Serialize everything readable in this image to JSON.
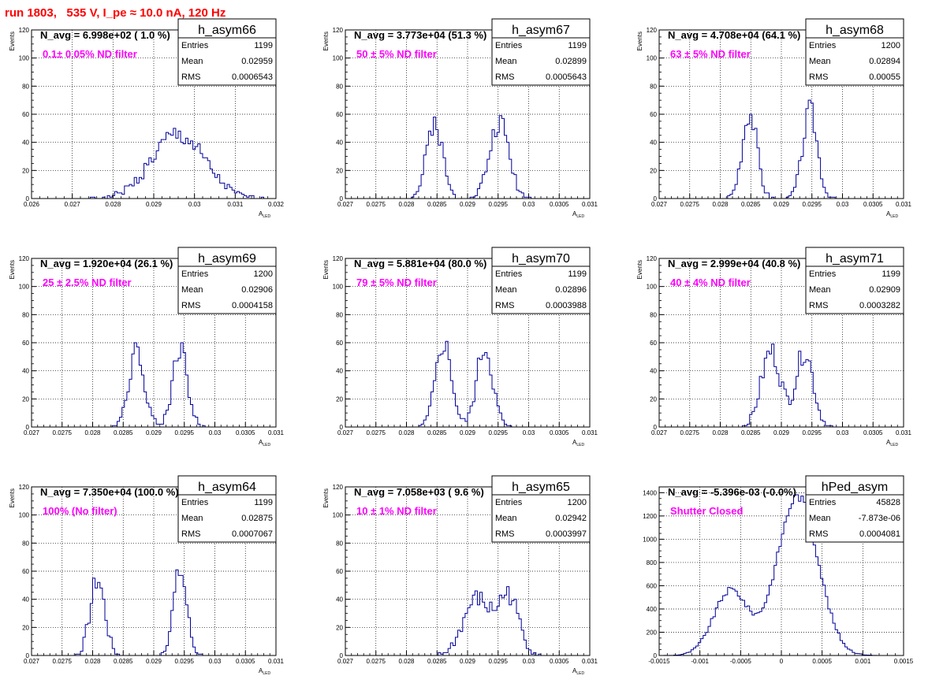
{
  "page": {
    "title": "run 1803,   535 V, I_pe ≈ 10.0 nA, 120 Hz"
  },
  "colors": {
    "histogram": "#000099",
    "annotation": "#ff00ff",
    "title": "#ff0000"
  },
  "chart_data": [
    {
      "type": "histogram",
      "name": "h_asym66",
      "navg": "N_avg = 6.998e+02 ( 1.0 %)",
      "filter": "0.1± 0.05% ND filter",
      "stats": {
        "entries_label": "Entries",
        "entries": "1199",
        "mean_label": "Mean",
        "mean": "0.02959",
        "rms_label": "RMS",
        "rms": "0.0006543"
      },
      "ylabel": "Events",
      "xlabel": "A",
      "xlabel_sub": "LED",
      "xlim": [
        0.026,
        0.032
      ],
      "ylim": [
        0,
        120
      ],
      "xticks": [
        0.026,
        0.027,
        0.028,
        0.029,
        0.03,
        0.031,
        0.032
      ],
      "xtick_labels": [
        "0.026",
        "0.027",
        "0.028",
        "0.029",
        "0.03",
        "0.031",
        "0.032"
      ],
      "yticks": [
        0,
        20,
        40,
        60,
        80,
        100,
        120
      ],
      "ytick_labels": [
        "0",
        "20",
        "40",
        "60",
        "80",
        "100",
        "120"
      ],
      "peaks": [
        {
          "mu": 0.02959,
          "sigma": 0.00065,
          "amp": 45
        }
      ],
      "noise_seed": 1
    },
    {
      "type": "histogram",
      "name": "h_asym67",
      "navg": "N_avg = 3.773e+04 (51.3 %)",
      "filter": "50 ± 5% ND filter",
      "stats": {
        "entries_label": "Entries",
        "entries": "1199",
        "mean_label": "Mean",
        "mean": "0.02899",
        "rms_label": "RMS",
        "rms": "0.0005643"
      },
      "ylabel": "Events",
      "xlabel": "A",
      "xlabel_sub": "LED",
      "xlim": [
        0.027,
        0.031
      ],
      "ylim": [
        0,
        120
      ],
      "xticks": [
        0.027,
        0.0275,
        0.028,
        0.0285,
        0.029,
        0.0295,
        0.03,
        0.0305,
        0.031
      ],
      "xtick_labels": [
        "0.027",
        "0.0275",
        "0.028",
        "0.0285",
        "0.029",
        "0.0295",
        "0.03",
        "0.0305",
        "0.031"
      ],
      "yticks": [
        0,
        20,
        40,
        60,
        80,
        100,
        120
      ],
      "ytick_labels": [
        "0",
        "20",
        "40",
        "60",
        "80",
        "100",
        "120"
      ],
      "peaks": [
        {
          "mu": 0.02846,
          "sigma": 0.00013,
          "amp": 55
        },
        {
          "mu": 0.02952,
          "sigma": 0.00016,
          "amp": 54
        }
      ],
      "noise_seed": 2
    },
    {
      "type": "histogram",
      "name": "h_asym68",
      "navg": "N_avg = 4.708e+04 (64.1 %)",
      "filter": "63 ± 5% ND filter",
      "stats": {
        "entries_label": "Entries",
        "entries": "1200",
        "mean_label": "Mean",
        "mean": "0.02894",
        "rms_label": "RMS",
        "rms": "0.00055"
      },
      "ylabel": "Events",
      "xlabel": "A",
      "xlabel_sub": "LED",
      "xlim": [
        0.027,
        0.031
      ],
      "ylim": [
        0,
        120
      ],
      "xticks": [
        0.027,
        0.0275,
        0.028,
        0.0285,
        0.029,
        0.0295,
        0.03,
        0.0305,
        0.031
      ],
      "xtick_labels": [
        "0.027",
        "0.0275",
        "0.028",
        "0.0285",
        "0.029",
        "0.0295",
        "0.03",
        "0.0305",
        "0.031"
      ],
      "yticks": [
        0,
        20,
        40,
        60,
        80,
        100,
        120
      ],
      "ytick_labels": [
        "0",
        "20",
        "40",
        "60",
        "80",
        "100",
        "120"
      ],
      "peaks": [
        {
          "mu": 0.02848,
          "sigma": 0.00012,
          "amp": 62
        },
        {
          "mu": 0.02947,
          "sigma": 0.00012,
          "amp": 62
        }
      ],
      "noise_seed": 3
    },
    {
      "type": "histogram",
      "name": "h_asym69",
      "navg": "N_avg = 1.920e+04 (26.1 %)",
      "filter": "25 ± 2.5% ND filter",
      "stats": {
        "entries_label": "Entries",
        "entries": "1200",
        "mean_label": "Mean",
        "mean": "0.02906",
        "rms_label": "RMS",
        "rms": "0.0004158"
      },
      "ylabel": "Events",
      "xlabel": "A",
      "xlabel_sub": "LED",
      "xlim": [
        0.027,
        0.031
      ],
      "ylim": [
        0,
        120
      ],
      "xticks": [
        0.027,
        0.0275,
        0.028,
        0.0285,
        0.029,
        0.0295,
        0.03,
        0.0305,
        0.031
      ],
      "xtick_labels": [
        "0.027",
        "0.0275",
        "0.028",
        "0.0285",
        "0.029",
        "0.0295",
        "0.03",
        "0.0305",
        "0.031"
      ],
      "yticks": [
        0,
        20,
        40,
        60,
        80,
        100,
        120
      ],
      "ytick_labels": [
        "0",
        "20",
        "40",
        "60",
        "80",
        "100",
        "120"
      ],
      "peaks": [
        {
          "mu": 0.02872,
          "sigma": 0.00013,
          "amp": 55
        },
        {
          "mu": 0.02943,
          "sigma": 0.00012,
          "amp": 57
        }
      ],
      "noise_seed": 4
    },
    {
      "type": "histogram",
      "name": "h_asym70",
      "navg": "N_avg = 5.881e+04 (80.0 %)",
      "filter": "79 ± 5% ND filter",
      "stats": {
        "entries_label": "Entries",
        "entries": "1199",
        "mean_label": "Mean",
        "mean": "0.02896",
        "rms_label": "RMS",
        "rms": "0.0003988"
      },
      "ylabel": "Events",
      "xlabel": "A",
      "xlabel_sub": "LED",
      "xlim": [
        0.027,
        0.031
      ],
      "ylim": [
        0,
        120
      ],
      "xticks": [
        0.027,
        0.0275,
        0.028,
        0.0285,
        0.029,
        0.0295,
        0.03,
        0.0305,
        0.031
      ],
      "xtick_labels": [
        "0.027",
        "0.0275",
        "0.028",
        "0.0285",
        "0.029",
        "0.0295",
        "0.03",
        "0.0305",
        "0.031"
      ],
      "yticks": [
        0,
        20,
        40,
        60,
        80,
        100,
        120
      ],
      "ytick_labels": [
        "0",
        "20",
        "40",
        "60",
        "80",
        "100",
        "120"
      ],
      "peaks": [
        {
          "mu": 0.02861,
          "sigma": 0.00013,
          "amp": 60
        },
        {
          "mu": 0.02928,
          "sigma": 0.00013,
          "amp": 57
        }
      ],
      "noise_seed": 5
    },
    {
      "type": "histogram",
      "name": "h_asym71",
      "navg": "N_avg = 2.999e+04 (40.8 %)",
      "filter": "40 ± 4% ND filter",
      "stats": {
        "entries_label": "Entries",
        "entries": "1199",
        "mean_label": "Mean",
        "mean": "0.02909",
        "rms_label": "RMS",
        "rms": "0.0003282"
      },
      "ylabel": "Events",
      "xlabel": "A",
      "xlabel_sub": "LED",
      "xlim": [
        0.027,
        0.031
      ],
      "ylim": [
        0,
        120
      ],
      "xticks": [
        0.027,
        0.0275,
        0.028,
        0.0285,
        0.029,
        0.0295,
        0.03,
        0.0305,
        0.031
      ],
      "xtick_labels": [
        "0.027",
        "0.0275",
        "0.028",
        "0.0285",
        "0.029",
        "0.0295",
        "0.03",
        "0.0305",
        "0.031"
      ],
      "yticks": [
        0,
        20,
        40,
        60,
        80,
        100,
        120
      ],
      "ytick_labels": [
        "0",
        "20",
        "40",
        "60",
        "80",
        "100",
        "120"
      ],
      "peaks": [
        {
          "mu": 0.02883,
          "sigma": 0.00016,
          "amp": 54
        },
        {
          "mu": 0.02938,
          "sigma": 0.00014,
          "amp": 54
        }
      ],
      "noise_seed": 6
    },
    {
      "type": "histogram",
      "name": "h_asym64",
      "navg": "N_avg = 7.350e+04 (100.0 %)",
      "filter": "100% (No filter)",
      "stats": {
        "entries_label": "Entries",
        "entries": "1199",
        "mean_label": "Mean",
        "mean": "0.02875",
        "rms_label": "RMS",
        "rms": "0.0007067"
      },
      "ylabel": "Events",
      "xlabel": "A",
      "xlabel_sub": "LED",
      "xlim": [
        0.027,
        0.031
      ],
      "ylim": [
        0,
        120
      ],
      "xticks": [
        0.027,
        0.0275,
        0.028,
        0.0285,
        0.029,
        0.0295,
        0.03,
        0.0305,
        0.031
      ],
      "xtick_labels": [
        "0.027",
        "0.0275",
        "0.028",
        "0.0285",
        "0.029",
        "0.0295",
        "0.03",
        "0.0305",
        "0.031"
      ],
      "yticks": [
        0,
        20,
        40,
        60,
        80,
        100,
        120
      ],
      "ytick_labels": [
        "0",
        "20",
        "40",
        "60",
        "80",
        "100",
        "120"
      ],
      "peaks": [
        {
          "mu": 0.02808,
          "sigma": 0.00012,
          "amp": 54
        },
        {
          "mu": 0.02943,
          "sigma": 0.00011,
          "amp": 60
        }
      ],
      "noise_seed": 7
    },
    {
      "type": "histogram",
      "name": "h_asym65",
      "navg": "N_avg = 7.058e+03 ( 9.6 %)",
      "filter": "10 ± 1% ND filter",
      "stats": {
        "entries_label": "Entries",
        "entries": "1200",
        "mean_label": "Mean",
        "mean": "0.02942",
        "rms_label": "RMS",
        "rms": "0.0003997"
      },
      "ylabel": "Events",
      "xlabel": "A",
      "xlabel_sub": "LED",
      "xlim": [
        0.027,
        0.031
      ],
      "ylim": [
        0,
        120
      ],
      "xticks": [
        0.027,
        0.0275,
        0.028,
        0.0285,
        0.029,
        0.0295,
        0.03,
        0.0305,
        0.031
      ],
      "xtick_labels": [
        "0.027",
        "0.0275",
        "0.028",
        "0.0285",
        "0.029",
        "0.0295",
        "0.03",
        "0.0305",
        "0.031"
      ],
      "yticks": [
        0,
        20,
        40,
        60,
        80,
        100,
        120
      ],
      "ytick_labels": [
        "0",
        "20",
        "40",
        "60",
        "80",
        "100",
        "120"
      ],
      "peaks": [
        {
          "mu": 0.02915,
          "sigma": 0.00022,
          "amp": 40
        },
        {
          "mu": 0.02967,
          "sigma": 0.00017,
          "amp": 42
        }
      ],
      "noise_seed": 8
    },
    {
      "type": "histogram",
      "name": "hPed_asym",
      "navg": "N_avg = -5.396e-03 (-0.0%)",
      "filter": "Shutter Closed",
      "stats": {
        "entries_label": "Entries",
        "entries": "45828",
        "mean_label": "Mean",
        "mean": "-7.873e-06",
        "rms_label": "RMS",
        "rms": "0.0004081"
      },
      "ylabel": "",
      "xlabel": "",
      "xlabel_sub": "",
      "xlim": [
        -0.0015,
        0.0015
      ],
      "ylim": [
        0,
        1450
      ],
      "xticks": [
        -0.0015,
        -0.001,
        -0.0005,
        0,
        0.0005,
        0.001,
        0.0015
      ],
      "xtick_labels": [
        "-0.0015",
        "-0.001",
        "-0.0005",
        "0",
        "0.0005",
        "0.001",
        "0.0015"
      ],
      "yticks": [
        0,
        200,
        400,
        600,
        800,
        1000,
        1200,
        1400
      ],
      "ytick_labels": [
        "0",
        "200",
        "400",
        "600",
        "800",
        "1000",
        "1200",
        "1400"
      ],
      "peaks": [
        {
          "mu": -0.00062,
          "sigma": 0.00021,
          "amp": 560
        },
        {
          "mu": 0.0002,
          "sigma": 0.00025,
          "amp": 1370
        }
      ],
      "noise_seed": 9
    }
  ]
}
